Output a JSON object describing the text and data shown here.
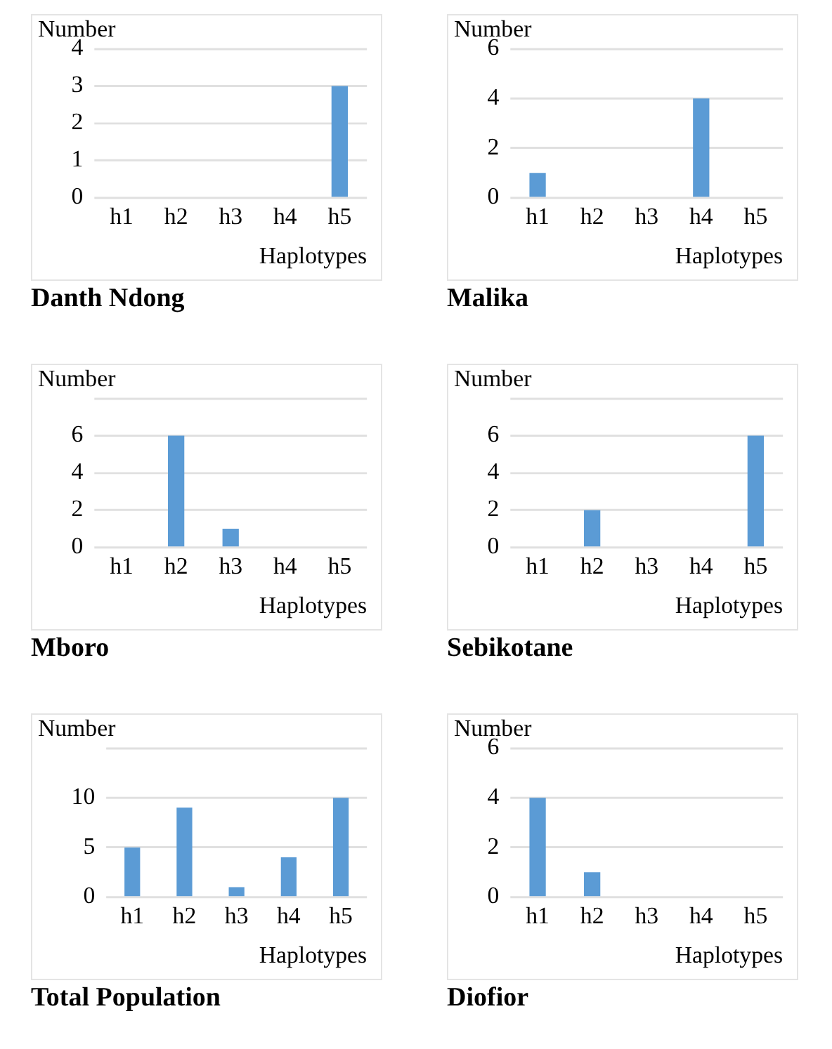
{
  "chart_data": [
    {
      "type": "bar",
      "title": "Danth Ndong",
      "xlabel": "Haplotypes",
      "ylabel": "Number",
      "categories": [
        "h1",
        "h2",
        "h3",
        "h4",
        "h5"
      ],
      "values": [
        0,
        0,
        0,
        0,
        3
      ],
      "color": "#5b9bd5",
      "ylim": [
        0,
        4
      ],
      "yticks": [
        0,
        1,
        2,
        3,
        4
      ],
      "grid": "y"
    },
    {
      "type": "bar",
      "title": "Malika",
      "xlabel": "Haplotypes",
      "ylabel": "Number",
      "categories": [
        "h1",
        "h2",
        "h3",
        "h4",
        "h5"
      ],
      "values": [
        1,
        0,
        0,
        4,
        0
      ],
      "color": "#5b9bd5",
      "ylim": [
        0,
        6
      ],
      "yticks": [
        0,
        2,
        4,
        6
      ],
      "grid": "y"
    },
    {
      "type": "bar",
      "title": "Mboro",
      "xlabel": "Haplotypes",
      "ylabel": "Number",
      "categories": [
        "h1",
        "h2",
        "h3",
        "h4",
        "h5"
      ],
      "values": [
        0,
        6,
        1,
        0,
        0
      ],
      "color": "#5b9bd5",
      "ylim": [
        0,
        8
      ],
      "yticks": [
        0,
        2,
        4,
        6
      ],
      "grid": "y"
    },
    {
      "type": "bar",
      "title": "Sebikotane",
      "xlabel": "Haplotypes",
      "ylabel": "Number",
      "categories": [
        "h1",
        "h2",
        "h3",
        "h4",
        "h5"
      ],
      "values": [
        0,
        2,
        0,
        0,
        6
      ],
      "color": "#5b9bd5",
      "ylim": [
        0,
        8
      ],
      "yticks": [
        0,
        2,
        4,
        6
      ],
      "grid": "y"
    },
    {
      "type": "bar",
      "title": "Total Population",
      "xlabel": "Haplotypes",
      "ylabel": "Number",
      "categories": [
        "h1",
        "h2",
        "h3",
        "h4",
        "h5"
      ],
      "values": [
        5,
        9,
        1,
        4,
        10
      ],
      "color": "#5b9bd5",
      "ylim": [
        0,
        15
      ],
      "yticks": [
        0,
        5,
        10
      ],
      "grid": "y"
    },
    {
      "type": "bar",
      "title": "Diofior",
      "xlabel": "Haplotypes",
      "ylabel": "Number",
      "categories": [
        "h1",
        "h2",
        "h3",
        "h4",
        "h5"
      ],
      "values": [
        4,
        1,
        0,
        0,
        0
      ],
      "color": "#5b9bd5",
      "ylim": [
        0,
        6
      ],
      "yticks": [
        0,
        2,
        4,
        6
      ],
      "grid": "y"
    }
  ]
}
